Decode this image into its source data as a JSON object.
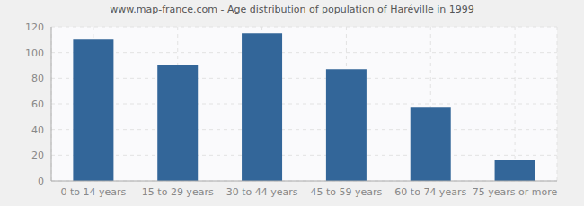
{
  "chart_data": {
    "type": "bar",
    "title": "www.map-france.com - Age distribution of population of Haréville in 1999",
    "categories": [
      "0 to 14 years",
      "15 to 29 years",
      "30 to 44 years",
      "45 to 59 years",
      "60 to 74 years",
      "75 years or more"
    ],
    "values": [
      110,
      90,
      115,
      87,
      57,
      16
    ],
    "color": "#336699",
    "ylim": [
      0,
      120
    ],
    "yticks": [
      0,
      20,
      40,
      60,
      80,
      100,
      120
    ],
    "grid": true
  }
}
